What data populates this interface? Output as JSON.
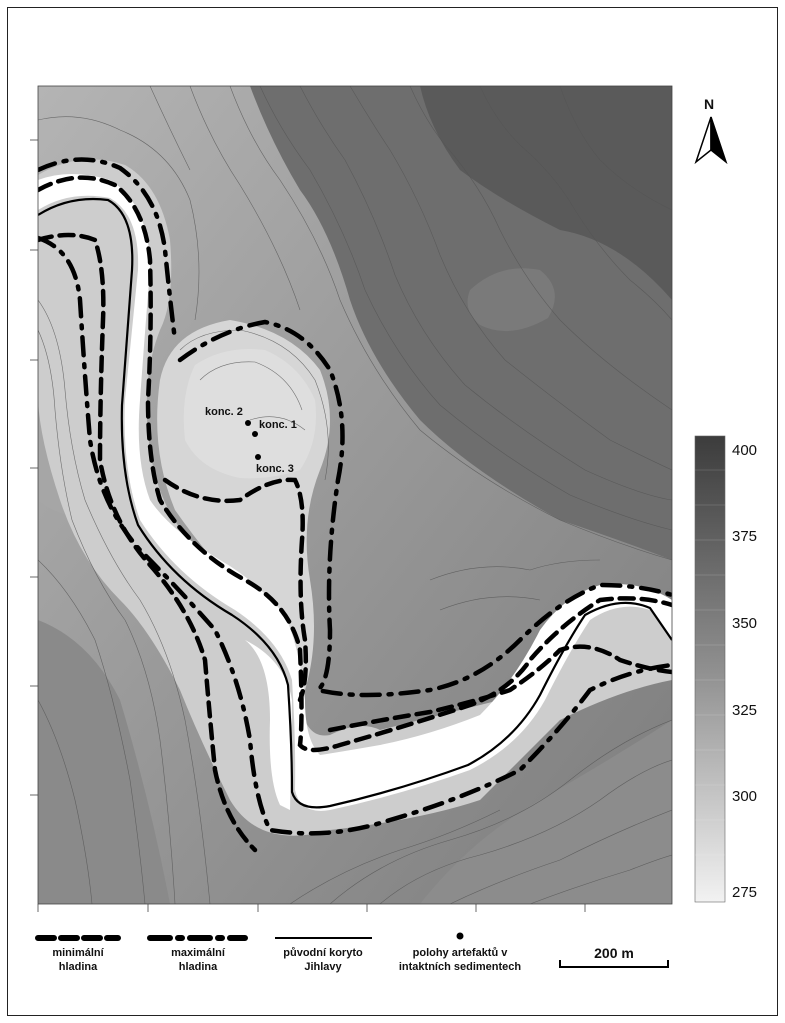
{
  "map": {
    "north_label": "N",
    "site_labels": [
      {
        "id": "konc2",
        "text": "konc. 2"
      },
      {
        "id": "konc1",
        "text": "konc. 1"
      },
      {
        "id": "konc3",
        "text": "konc. 3"
      }
    ]
  },
  "elevation_scale": {
    "ticks": [
      "400",
      "375",
      "350",
      "325",
      "300",
      "275"
    ],
    "min": 275,
    "max": 400,
    "color_low": "#f2f2f2",
    "color_high": "#3c3c3c"
  },
  "legend": {
    "min_level": [
      "minimální",
      "hladina"
    ],
    "max_level": [
      "maximální",
      "hladina"
    ],
    "original_channel": [
      "původní koryto",
      "Jihlavy"
    ],
    "artifact_positions": [
      "polohy artefaktů v",
      "intaktních sedimentech"
    ],
    "scale_bar": "200 m"
  },
  "colors": {
    "river": "#ffffff",
    "line": "#000000",
    "contour": "#555555"
  }
}
